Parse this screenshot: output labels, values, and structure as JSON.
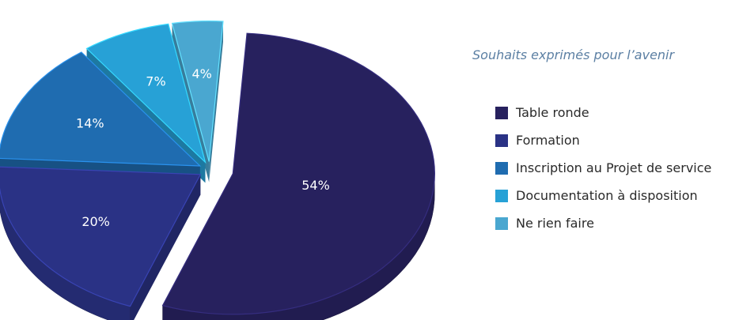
{
  "chart_data": {
    "type": "pie",
    "title": "Souhaits exprimés pour l’avenir",
    "slices": [
      {
        "label": "Table ronde",
        "value": 54,
        "value_label": "54%",
        "color": "#27215e"
      },
      {
        "label": "Formation",
        "value": 20,
        "value_label": "20%",
        "color": "#2a3285"
      },
      {
        "label": "Inscription au Projet de service",
        "value": 14,
        "value_label": "14%",
        "color": "#1f6cb0"
      },
      {
        "label": "Documentation à disposition",
        "value": 7,
        "value_label": "7%",
        "color": "#27a1d6"
      },
      {
        "label": "Ne rien faire",
        "value": 4,
        "value_label": "4%",
        "color": "#4aa7d0"
      }
    ],
    "legend_position": "right",
    "style": "3d-exploded-pie"
  }
}
